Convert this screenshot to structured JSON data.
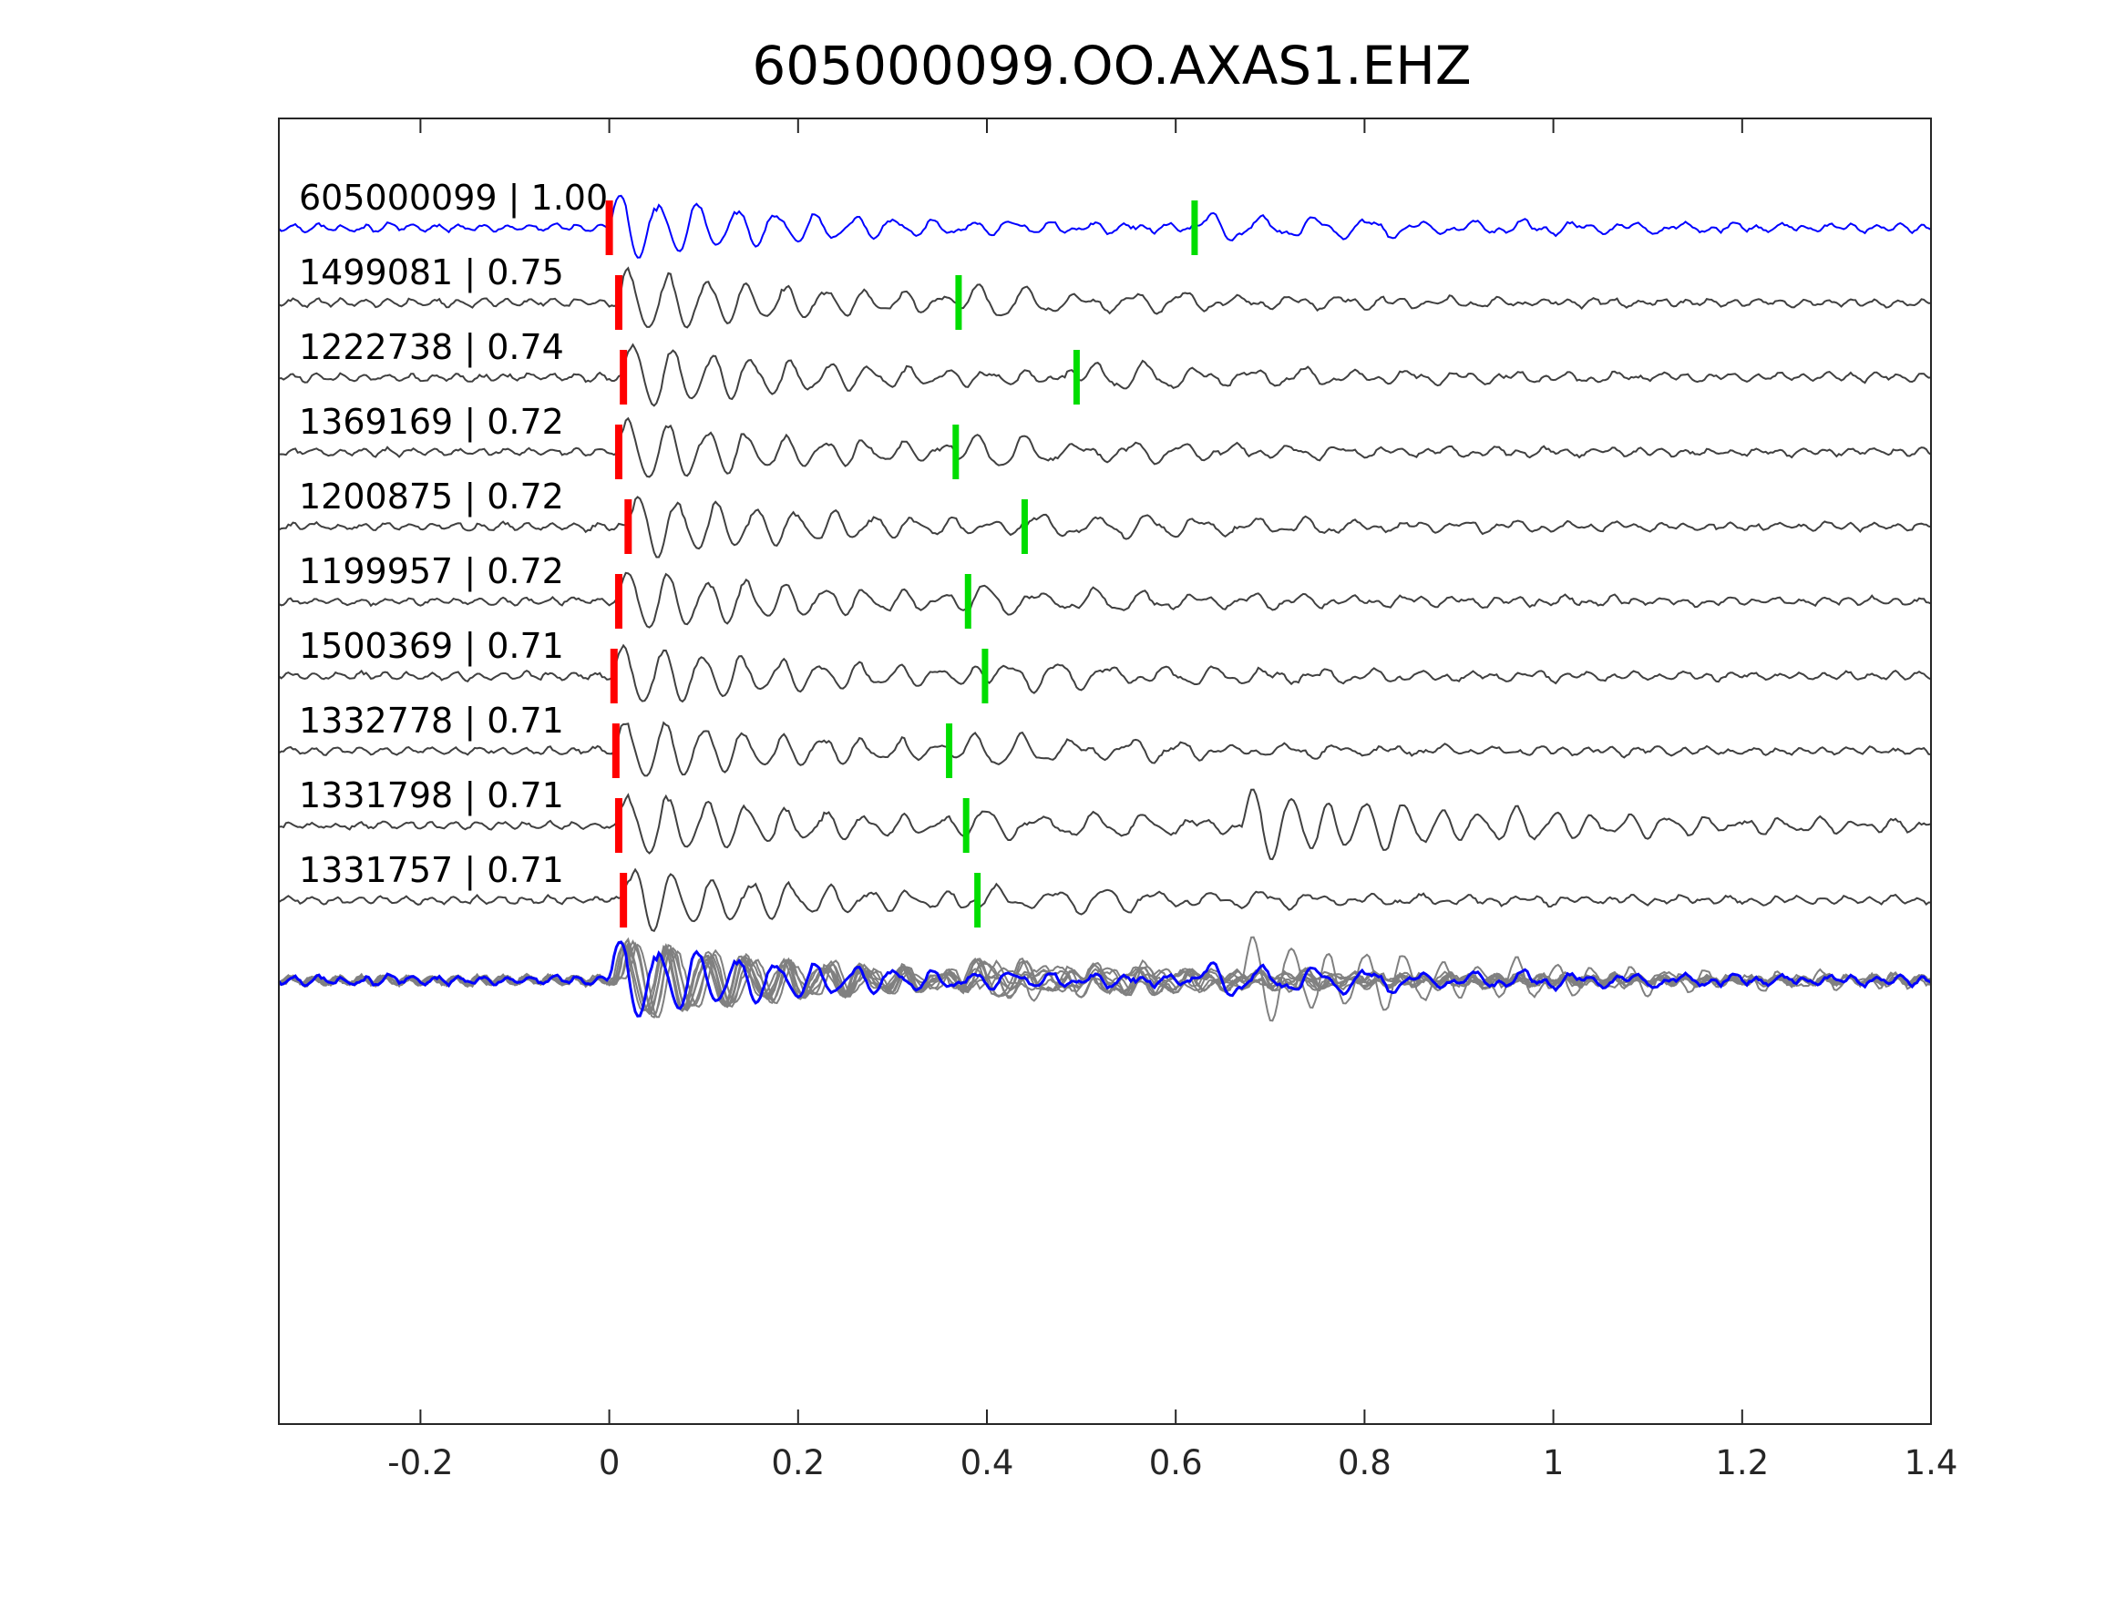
{
  "chart_data": {
    "type": "line",
    "title": "605000099.OO.AXAS1.EHZ",
    "xlabel": "",
    "ylabel": "",
    "xlim": [
      -0.35,
      1.4
    ],
    "xticks": [
      -0.2,
      0,
      0.2,
      0.4,
      0.6,
      0.8,
      1,
      1.2,
      1.4
    ],
    "xtick_labels": [
      "-0.2",
      "0",
      "0.2",
      "0.4",
      "0.6",
      "0.8",
      "1",
      "1.2",
      "1.4"
    ],
    "grid": false,
    "colors": {
      "template": "#0000ff",
      "match": "#404040",
      "overlay": "#808080",
      "p_pick": "#ff0000",
      "s_pick": "#00dd00",
      "axis": "#262626"
    },
    "traces": [
      {
        "label": "605000099 | 1.00",
        "event_id": "605000099",
        "cc": 1.0,
        "p_pick": 0.0,
        "s_pick": 0.62,
        "role": "template"
      },
      {
        "label": "1499081 | 0.75",
        "event_id": "1499081",
        "cc": 0.75,
        "p_pick": 0.01,
        "s_pick": 0.37,
        "role": "match"
      },
      {
        "label": "1222738 | 0.74",
        "event_id": "1222738",
        "cc": 0.74,
        "p_pick": 0.015,
        "s_pick": 0.495,
        "role": "match"
      },
      {
        "label": "1369169 | 0.72",
        "event_id": "1369169",
        "cc": 0.72,
        "p_pick": 0.01,
        "s_pick": 0.367,
        "role": "match"
      },
      {
        "label": "1200875 | 0.72",
        "event_id": "1200875",
        "cc": 0.72,
        "p_pick": 0.02,
        "s_pick": 0.44,
        "role": "match"
      },
      {
        "label": "1199957 | 0.72",
        "event_id": "1199957",
        "cc": 0.72,
        "p_pick": 0.01,
        "s_pick": 0.38,
        "role": "match"
      },
      {
        "label": "1500369 | 0.71",
        "event_id": "1500369",
        "cc": 0.71,
        "p_pick": 0.005,
        "s_pick": 0.398,
        "role": "match"
      },
      {
        "label": "1332778 | 0.71",
        "event_id": "1332778",
        "cc": 0.71,
        "p_pick": 0.007,
        "s_pick": 0.36,
        "role": "match"
      },
      {
        "label": "1331798 | 0.71",
        "event_id": "1331798",
        "cc": 0.71,
        "p_pick": 0.01,
        "s_pick": 0.378,
        "role": "match"
      },
      {
        "label": "1331757 | 0.71",
        "event_id": "1331757",
        "cc": 0.71,
        "p_pick": 0.015,
        "s_pick": 0.39,
        "role": "match"
      }
    ],
    "overlay": {
      "description_role": "stacked overlay of all traces",
      "template_color": "blue",
      "match_color": "gray"
    }
  }
}
